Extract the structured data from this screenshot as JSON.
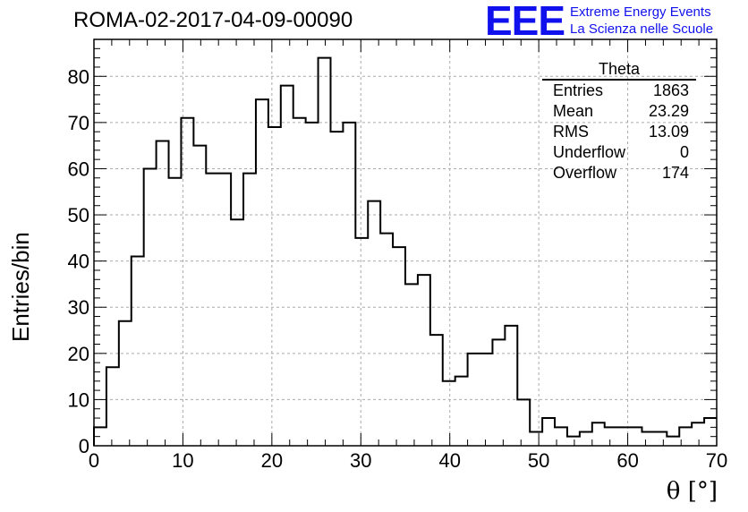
{
  "header": {
    "run_title": "ROMA-02-2017-04-09-00090",
    "logo_mark": "EEE",
    "logo_line1": "Extreme Energy Events",
    "logo_line2": "La Scienza nelle Scuole"
  },
  "stats_box": {
    "title": "Theta",
    "rows": [
      {
        "label": "Entries",
        "value": "1863"
      },
      {
        "label": "Mean",
        "value": "23.29"
      },
      {
        "label": "RMS",
        "value": "13.09"
      },
      {
        "label": "Underflow",
        "value": "0"
      },
      {
        "label": "Overflow",
        "value": "174"
      }
    ]
  },
  "chart_data": {
    "type": "bar",
    "style": "step-histogram",
    "xlabel": "θ [°]",
    "ylabel": "Entries/bin",
    "xlim": [
      0,
      70
    ],
    "ylim": [
      0,
      88
    ],
    "grid": true,
    "bin_width": 1.4,
    "x_ticks": [
      0,
      10,
      20,
      30,
      40,
      50,
      60,
      70
    ],
    "y_ticks": [
      0,
      10,
      20,
      30,
      40,
      50,
      60,
      70,
      80
    ],
    "values": [
      4,
      17,
      27,
      41,
      60,
      66,
      58,
      71,
      65,
      59,
      59,
      49,
      59,
      75,
      69,
      78,
      71,
      70,
      84,
      68,
      70,
      45,
      53,
      46,
      43,
      35,
      37,
      24,
      14,
      15,
      20,
      20,
      23,
      26,
      10,
      3,
      6,
      4,
      2,
      3,
      5,
      4,
      4,
      4,
      3,
      3,
      2,
      4,
      5,
      6
    ],
    "line_color": "#000000",
    "grid_color": "#aaaaaa"
  }
}
